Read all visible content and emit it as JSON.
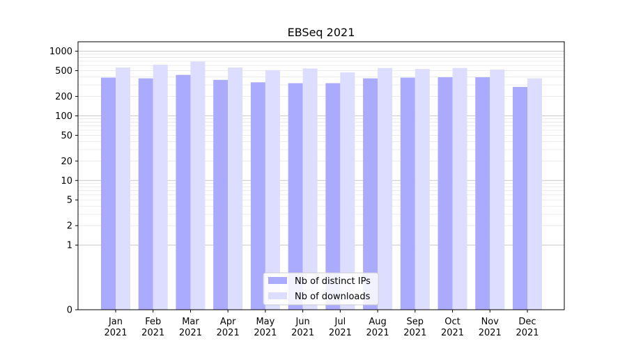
{
  "chart_data": {
    "type": "bar",
    "title": "EBSeq 2021",
    "xlabel": "",
    "ylabel": "",
    "yscale": "symlog",
    "ylim": [
      0,
      1400
    ],
    "y_ticks": [
      0,
      1,
      2,
      5,
      10,
      20,
      50,
      100,
      200,
      500,
      1000
    ],
    "grid": true,
    "legend_position": "bottom-center",
    "categories": [
      [
        "Jan",
        "2021"
      ],
      [
        "Feb",
        "2021"
      ],
      [
        "Mar",
        "2021"
      ],
      [
        "Apr",
        "2021"
      ],
      [
        "May",
        "2021"
      ],
      [
        "Jun",
        "2021"
      ],
      [
        "Jul",
        "2021"
      ],
      [
        "Aug",
        "2021"
      ],
      [
        "Sep",
        "2021"
      ],
      [
        "Oct",
        "2021"
      ],
      [
        "Nov",
        "2021"
      ],
      [
        "Dec",
        "2021"
      ]
    ],
    "series": [
      {
        "name": "Nb of distinct IPs",
        "color": "#aaaaff",
        "values": [
          390,
          380,
          430,
          360,
          330,
          320,
          320,
          380,
          390,
          395,
          395,
          280
        ]
      },
      {
        "name": "Nb of downloads",
        "color": "#ddddff",
        "values": [
          560,
          620,
          690,
          560,
          510,
          540,
          470,
          550,
          530,
          550,
          520,
          380
        ]
      }
    ]
  }
}
